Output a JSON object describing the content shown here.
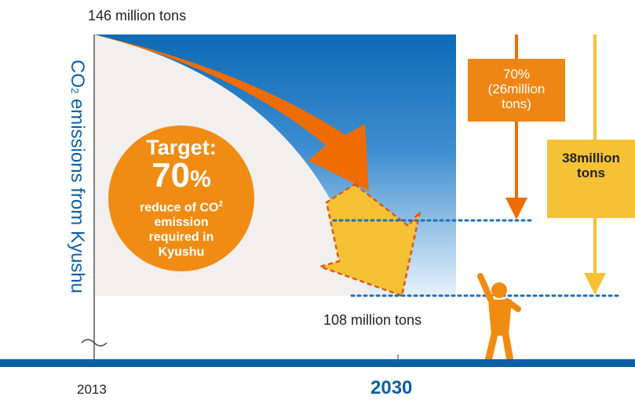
{
  "labels": {
    "top_value": "146 million tons",
    "bottom_value": "108 million tons",
    "year_start": "2013",
    "year_end": "2030",
    "y_axis_main": "CO",
    "y_axis_sub": "2",
    "y_axis_rest": " emissions from Kyushu"
  },
  "target_circle": {
    "line1": "Target:",
    "percent_number": "70",
    "percent_sign": "%",
    "line3a": "reduce of CO",
    "line3a_sub": "2",
    "line3b": "emission",
    "line3c": "required in",
    "line3d": "Kyushu"
  },
  "reduction_box": {
    "line1": "70%",
    "line2": "(26million",
    "line3": "tons)"
  },
  "total_box": {
    "line1": "38million",
    "line2": "tons"
  },
  "colors": {
    "blue": "#0d5fa8",
    "orange": "#ef6c00",
    "orange_light": "#f08c14",
    "yellow": "#f6c235",
    "gray_bg": "#f2f0ee",
    "dotted": "#1f6fb5"
  }
}
